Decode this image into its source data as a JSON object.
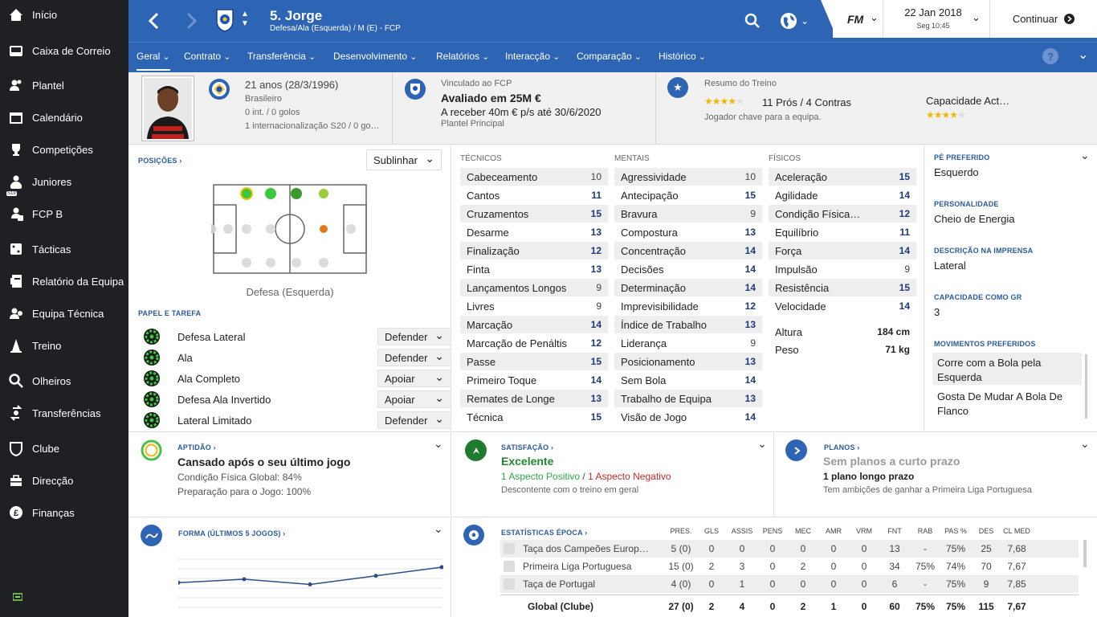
{
  "sidebar": {
    "items": [
      {
        "label": "Início",
        "icon": "home-icon"
      },
      {
        "label": "Caixa de Correio",
        "icon": "inbox-icon"
      },
      {
        "label": "Plantel",
        "icon": "squad-icon"
      },
      {
        "label": "Calendário",
        "icon": "calendar-icon"
      },
      {
        "label": "Competições",
        "icon": "trophy-icon"
      },
      {
        "label": "Juniores",
        "icon": "youth-icon"
      },
      {
        "label": "FCP B",
        "icon": "b-team-icon"
      },
      {
        "label": "Tácticas",
        "icon": "tactics-icon"
      },
      {
        "label": "Relatório da Equipa",
        "icon": "report-icon"
      },
      {
        "label": "Equipa Técnica",
        "icon": "staff-icon"
      },
      {
        "label": "Treino",
        "icon": "training-icon"
      },
      {
        "label": "Olheiros",
        "icon": "scouting-icon"
      },
      {
        "label": "Transferências",
        "icon": "transfers-icon"
      },
      {
        "label": "Clube",
        "icon": "club-icon"
      },
      {
        "label": "Direcção",
        "icon": "board-icon"
      },
      {
        "label": "Finanças",
        "icon": "finances-icon"
      }
    ],
    "footer_icon": "status-icon",
    "youth_badge": "S19"
  },
  "header": {
    "player_name": "5. Jorge",
    "player_sub": "Defesa/Ala (Esquerda) / M (E) - FCP",
    "date": "22 Jan 2018",
    "time": "Seg 10:45",
    "continue": "Continuar",
    "fm_logo": "FM",
    "tabs": [
      "Geral",
      "Contrato",
      "Transferência",
      "Desenvolvimento",
      "Relatórios",
      "Interacção",
      "Comparação",
      "Histórico"
    ],
    "help": "?"
  },
  "summary": {
    "age": "21 anos (28/3/1996)",
    "nationality": "Brasileiro",
    "caps": "0 int. / 0 golos",
    "youth_caps": "1 internacionalização S20 / 0 go…",
    "contract_label": "Vinculado ao FCP",
    "value": "Avaliado em 25M €",
    "wage": "A receber 40m € p/s até 30/6/2020",
    "squad_status": "Plantel Principal",
    "training_label": "Resumo do Treino",
    "training_stars": 4,
    "pros_cons": "11 Prós / 4 Contras",
    "training_note": "Jogador chave para a equipa.",
    "ability_label": "Capacidade Act…",
    "ability_stars": 4
  },
  "positions": {
    "header": "POSIÇÕES",
    "dropdown": "Sublinhar",
    "selected": "Defesa (Esquerda)",
    "colors": {
      "natural": "#3cc83c",
      "accomplished": "#3a9a2a",
      "competent": "#9ccc3c",
      "unconvincing": "#e07818",
      "none": "#cfcfcf"
    }
  },
  "roles": {
    "header": "PAPEL E TAREFA",
    "items": [
      {
        "name": "Defesa Lateral",
        "duty": "Defender"
      },
      {
        "name": "Ala",
        "duty": "Defender"
      },
      {
        "name": "Ala Completo",
        "duty": "Apoiar"
      },
      {
        "name": "Defesa Ala Invertido",
        "duty": "Apoiar"
      },
      {
        "name": "Lateral Limitado",
        "duty": "Defender"
      }
    ]
  },
  "attributes": {
    "tech_header": "TÉCNICOS",
    "mental_header": "MENTAIS",
    "phys_header": "FÍSICOS",
    "technical": [
      {
        "name": "Cabeceamento",
        "value": "10"
      },
      {
        "name": "Cantos",
        "value": "11"
      },
      {
        "name": "Cruzamentos",
        "value": "15"
      },
      {
        "name": "Desarme",
        "value": "13"
      },
      {
        "name": "Finalização",
        "value": "12"
      },
      {
        "name": "Finta",
        "value": "13"
      },
      {
        "name": "Lançamentos Longos",
        "value": "9"
      },
      {
        "name": "Livres",
        "value": "9"
      },
      {
        "name": "Marcação",
        "value": "14"
      },
      {
        "name": "Marcação de Penáltis",
        "value": "12"
      },
      {
        "name": "Passe",
        "value": "15"
      },
      {
        "name": "Primeiro Toque",
        "value": "14"
      },
      {
        "name": "Remates de Longe",
        "value": "13"
      },
      {
        "name": "Técnica",
        "value": "15"
      }
    ],
    "mental": [
      {
        "name": "Agressividade",
        "value": "10"
      },
      {
        "name": "Antecipação",
        "value": "15"
      },
      {
        "name": "Bravura",
        "value": "9"
      },
      {
        "name": "Compostura",
        "value": "13"
      },
      {
        "name": "Concentração",
        "value": "14"
      },
      {
        "name": "Decisões",
        "value": "14"
      },
      {
        "name": "Determinação",
        "value": "14"
      },
      {
        "name": "Imprevisibilidade",
        "value": "12"
      },
      {
        "name": "Índice de Trabalho",
        "value": "13"
      },
      {
        "name": "Liderança",
        "value": "9"
      },
      {
        "name": "Posicionamento",
        "value": "13"
      },
      {
        "name": "Sem Bola",
        "value": "14"
      },
      {
        "name": "Trabalho de Equipa",
        "value": "13"
      },
      {
        "name": "Visão de Jogo",
        "value": "14"
      }
    ],
    "physical": [
      {
        "name": "Aceleração",
        "value": "15"
      },
      {
        "name": "Agilidade",
        "value": "14"
      },
      {
        "name": "Condição Física…",
        "value": "12"
      },
      {
        "name": "Equilíbrio",
        "value": "11"
      },
      {
        "name": "Força",
        "value": "14"
      },
      {
        "name": "Impulsão",
        "value": "9"
      },
      {
        "name": "Resistência",
        "value": "15"
      },
      {
        "name": "Velocidade",
        "value": "14"
      }
    ],
    "height_label": "Altura",
    "height": "184 cm",
    "weight_label": "Peso",
    "weight": "71 kg"
  },
  "info": {
    "foot_h": "PÉ PREFERIDO",
    "foot": "Esquerdo",
    "pers_h": "PERSONALIDADE",
    "pers": "Cheio de Energia",
    "press_h": "DESCRIÇÃO NA IMPRENSA",
    "press": "Lateral",
    "gk_h": "CAPACIDADE COMO GR",
    "gk": "3",
    "moves_h": "MOVIMENTOS PREFERIDOS",
    "moves": [
      "Corre com a Bola pela Esquerda",
      "Gosta De Mudar A Bola De Flanco"
    ]
  },
  "fitness": {
    "header": "APTIDÃO",
    "title": "Cansado após o seu último jogo",
    "condition": "Condição Física Global: 84%",
    "prep": "Preparação para o Jogo: 100%"
  },
  "satisfaction": {
    "header": "SATISFAÇÃO",
    "title": "Excelente",
    "positive": "1 Aspecto Positivo",
    "sep": "/",
    "negative": "1 Aspecto Negativo",
    "note": "Descontente com o treino em geral"
  },
  "plans": {
    "header": "PLANOS",
    "title": "Sem planos a curto prazo",
    "long": "1 plano longo prazo",
    "note": "Tem ambições de ganhar a Primeira Liga Portuguesa"
  },
  "form": {
    "header": "FORMA (ÚLTIMOS 5 JOGOS)"
  },
  "chart_data": {
    "type": "line",
    "title": "",
    "x": [
      1,
      2,
      3,
      4,
      5
    ],
    "values": [
      6.9,
      7.0,
      6.85,
      7.1,
      7.35
    ],
    "ylim": [
      6.0,
      8.0
    ],
    "grid": true
  },
  "season_stats": {
    "header": "ESTATÍSTICAS ÉPOCA",
    "columns": [
      "PRES.",
      "GLS",
      "ASSIS",
      "PENS",
      "MEC",
      "AMR",
      "VRM",
      "FNT",
      "RAB",
      "PAS %",
      "DES",
      "CL MED"
    ],
    "rows": [
      {
        "comp": "Taça dos Campeões Europ…",
        "values": [
          "5 (0)",
          "0",
          "0",
          "0",
          "0",
          "0",
          "0",
          "13",
          "-",
          "75%",
          "25",
          "7,68"
        ]
      },
      {
        "comp": "Primeira Liga Portuguesa",
        "values": [
          "15 (0)",
          "2",
          "3",
          "0",
          "2",
          "0",
          "0",
          "34",
          "75%",
          "74%",
          "70",
          "7,67"
        ]
      },
      {
        "comp": "Taça de Portugal",
        "values": [
          "4 (0)",
          "0",
          "1",
          "0",
          "0",
          "0",
          "0",
          "6",
          "-",
          "75%",
          "9",
          "7,85"
        ]
      }
    ],
    "total_label": "Global (Clube)",
    "total": [
      "27 (0)",
      "2",
      "4",
      "0",
      "2",
      "1",
      "0",
      "60",
      "75%",
      "75%",
      "115",
      "7,67"
    ]
  }
}
